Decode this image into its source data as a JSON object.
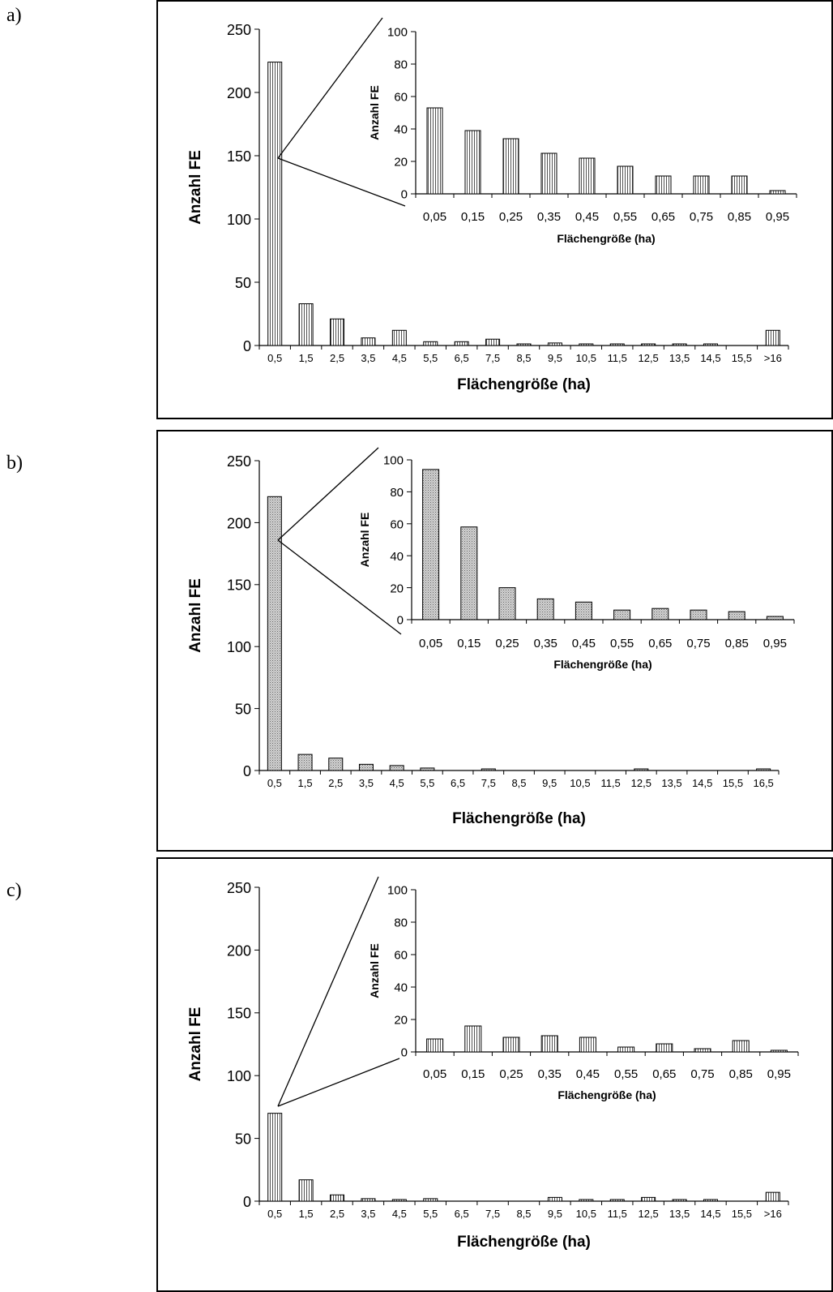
{
  "panels": [
    {
      "label": "a)",
      "chart_data": [
        {
          "type": "bar",
          "role": "main",
          "xlabel": "Flächengröße (ha)",
          "ylabel": "Anzahl FE",
          "ylim": [
            0,
            250
          ],
          "yticks": [
            "0",
            "50",
            "100",
            "150",
            "200",
            "250"
          ],
          "categories": [
            "0,5",
            "1,5",
            "2,5",
            "3,5",
            "4,5",
            "5,5",
            "6,5",
            "7,5",
            "8,5",
            "9,5",
            "10,5",
            "11,5",
            "12,5",
            "13,5",
            "14,5",
            "15,5",
            ">16"
          ],
          "values": [
            224,
            33,
            21,
            6,
            12,
            3,
            3,
            5,
            1,
            2,
            1,
            1,
            1,
            1,
            1,
            0,
            12
          ]
        },
        {
          "type": "bar",
          "role": "inset",
          "xlabel": "Flächengröße (ha)",
          "ylabel": "Anzahl FE",
          "ylim": [
            0,
            100
          ],
          "yticks": [
            "0",
            "20",
            "40",
            "60",
            "80",
            "100"
          ],
          "categories": [
            "0,05",
            "0,15",
            "0,25",
            "0,35",
            "0,45",
            "0,55",
            "0,65",
            "0,75",
            "0,85",
            "0,95"
          ],
          "values": [
            53,
            39,
            34,
            25,
            22,
            17,
            11,
            11,
            11,
            2
          ]
        }
      ]
    },
    {
      "label": "b)",
      "chart_data": [
        {
          "type": "bar",
          "role": "main",
          "xlabel": "Flächengröße (ha)",
          "ylabel": "Anzahl FE",
          "ylim": [
            0,
            250
          ],
          "yticks": [
            "0",
            "50",
            "100",
            "150",
            "200",
            "250"
          ],
          "categories": [
            "0,5",
            "1,5",
            "2,5",
            "3,5",
            "4,5",
            "5,5",
            "6,5",
            "7,5",
            "8,5",
            "9,5",
            "10,5",
            "11,5",
            "12,5",
            "13,5",
            "14,5",
            "15,5",
            "16,5"
          ],
          "values": [
            221,
            13,
            10,
            5,
            4,
            2,
            0,
            1,
            0,
            0,
            0,
            0,
            1,
            0,
            0,
            0,
            1
          ]
        },
        {
          "type": "bar",
          "role": "inset",
          "xlabel": "Flächengröße (ha)",
          "ylabel": "Anzahl FE",
          "ylim": [
            0,
            100
          ],
          "yticks": [
            "0",
            "20",
            "40",
            "60",
            "80",
            "100"
          ],
          "categories": [
            "0,05",
            "0,15",
            "0,25",
            "0,35",
            "0,45",
            "0,55",
            "0,65",
            "0,75",
            "0,85",
            "0,95"
          ],
          "values": [
            94,
            58,
            20,
            13,
            11,
            6,
            7,
            6,
            5,
            2
          ]
        }
      ]
    },
    {
      "label": "c)",
      "chart_data": [
        {
          "type": "bar",
          "role": "main",
          "xlabel": "Flächengröße (ha)",
          "ylabel": "Anzahl FE",
          "ylim": [
            0,
            250
          ],
          "yticks": [
            "0",
            "50",
            "100",
            "150",
            "200",
            "250"
          ],
          "categories": [
            "0,5",
            "1,5",
            "2,5",
            "3,5",
            "4,5",
            "5,5",
            "6,5",
            "7,5",
            "8,5",
            "9,5",
            "10,5",
            "11,5",
            "12,5",
            "13,5",
            "14,5",
            "15,5",
            ">16"
          ],
          "values": [
            70,
            17,
            5,
            2,
            1,
            2,
            0,
            0,
            0,
            3,
            1,
            1,
            3,
            1,
            1,
            0,
            7
          ]
        },
        {
          "type": "bar",
          "role": "inset",
          "xlabel": "Flächengröße (ha)",
          "ylabel": "Anzahl FE",
          "ylim": [
            0,
            100
          ],
          "yticks": [
            "0",
            "20",
            "40",
            "60",
            "80",
            "100"
          ],
          "categories": [
            "0,05",
            "0,15",
            "0,25",
            "0,35",
            "0,45",
            "0,55",
            "0,65",
            "0,75",
            "0,85",
            "0,95"
          ],
          "values": [
            8,
            16,
            9,
            10,
            9,
            3,
            5,
            2,
            7,
            1
          ]
        }
      ]
    }
  ]
}
